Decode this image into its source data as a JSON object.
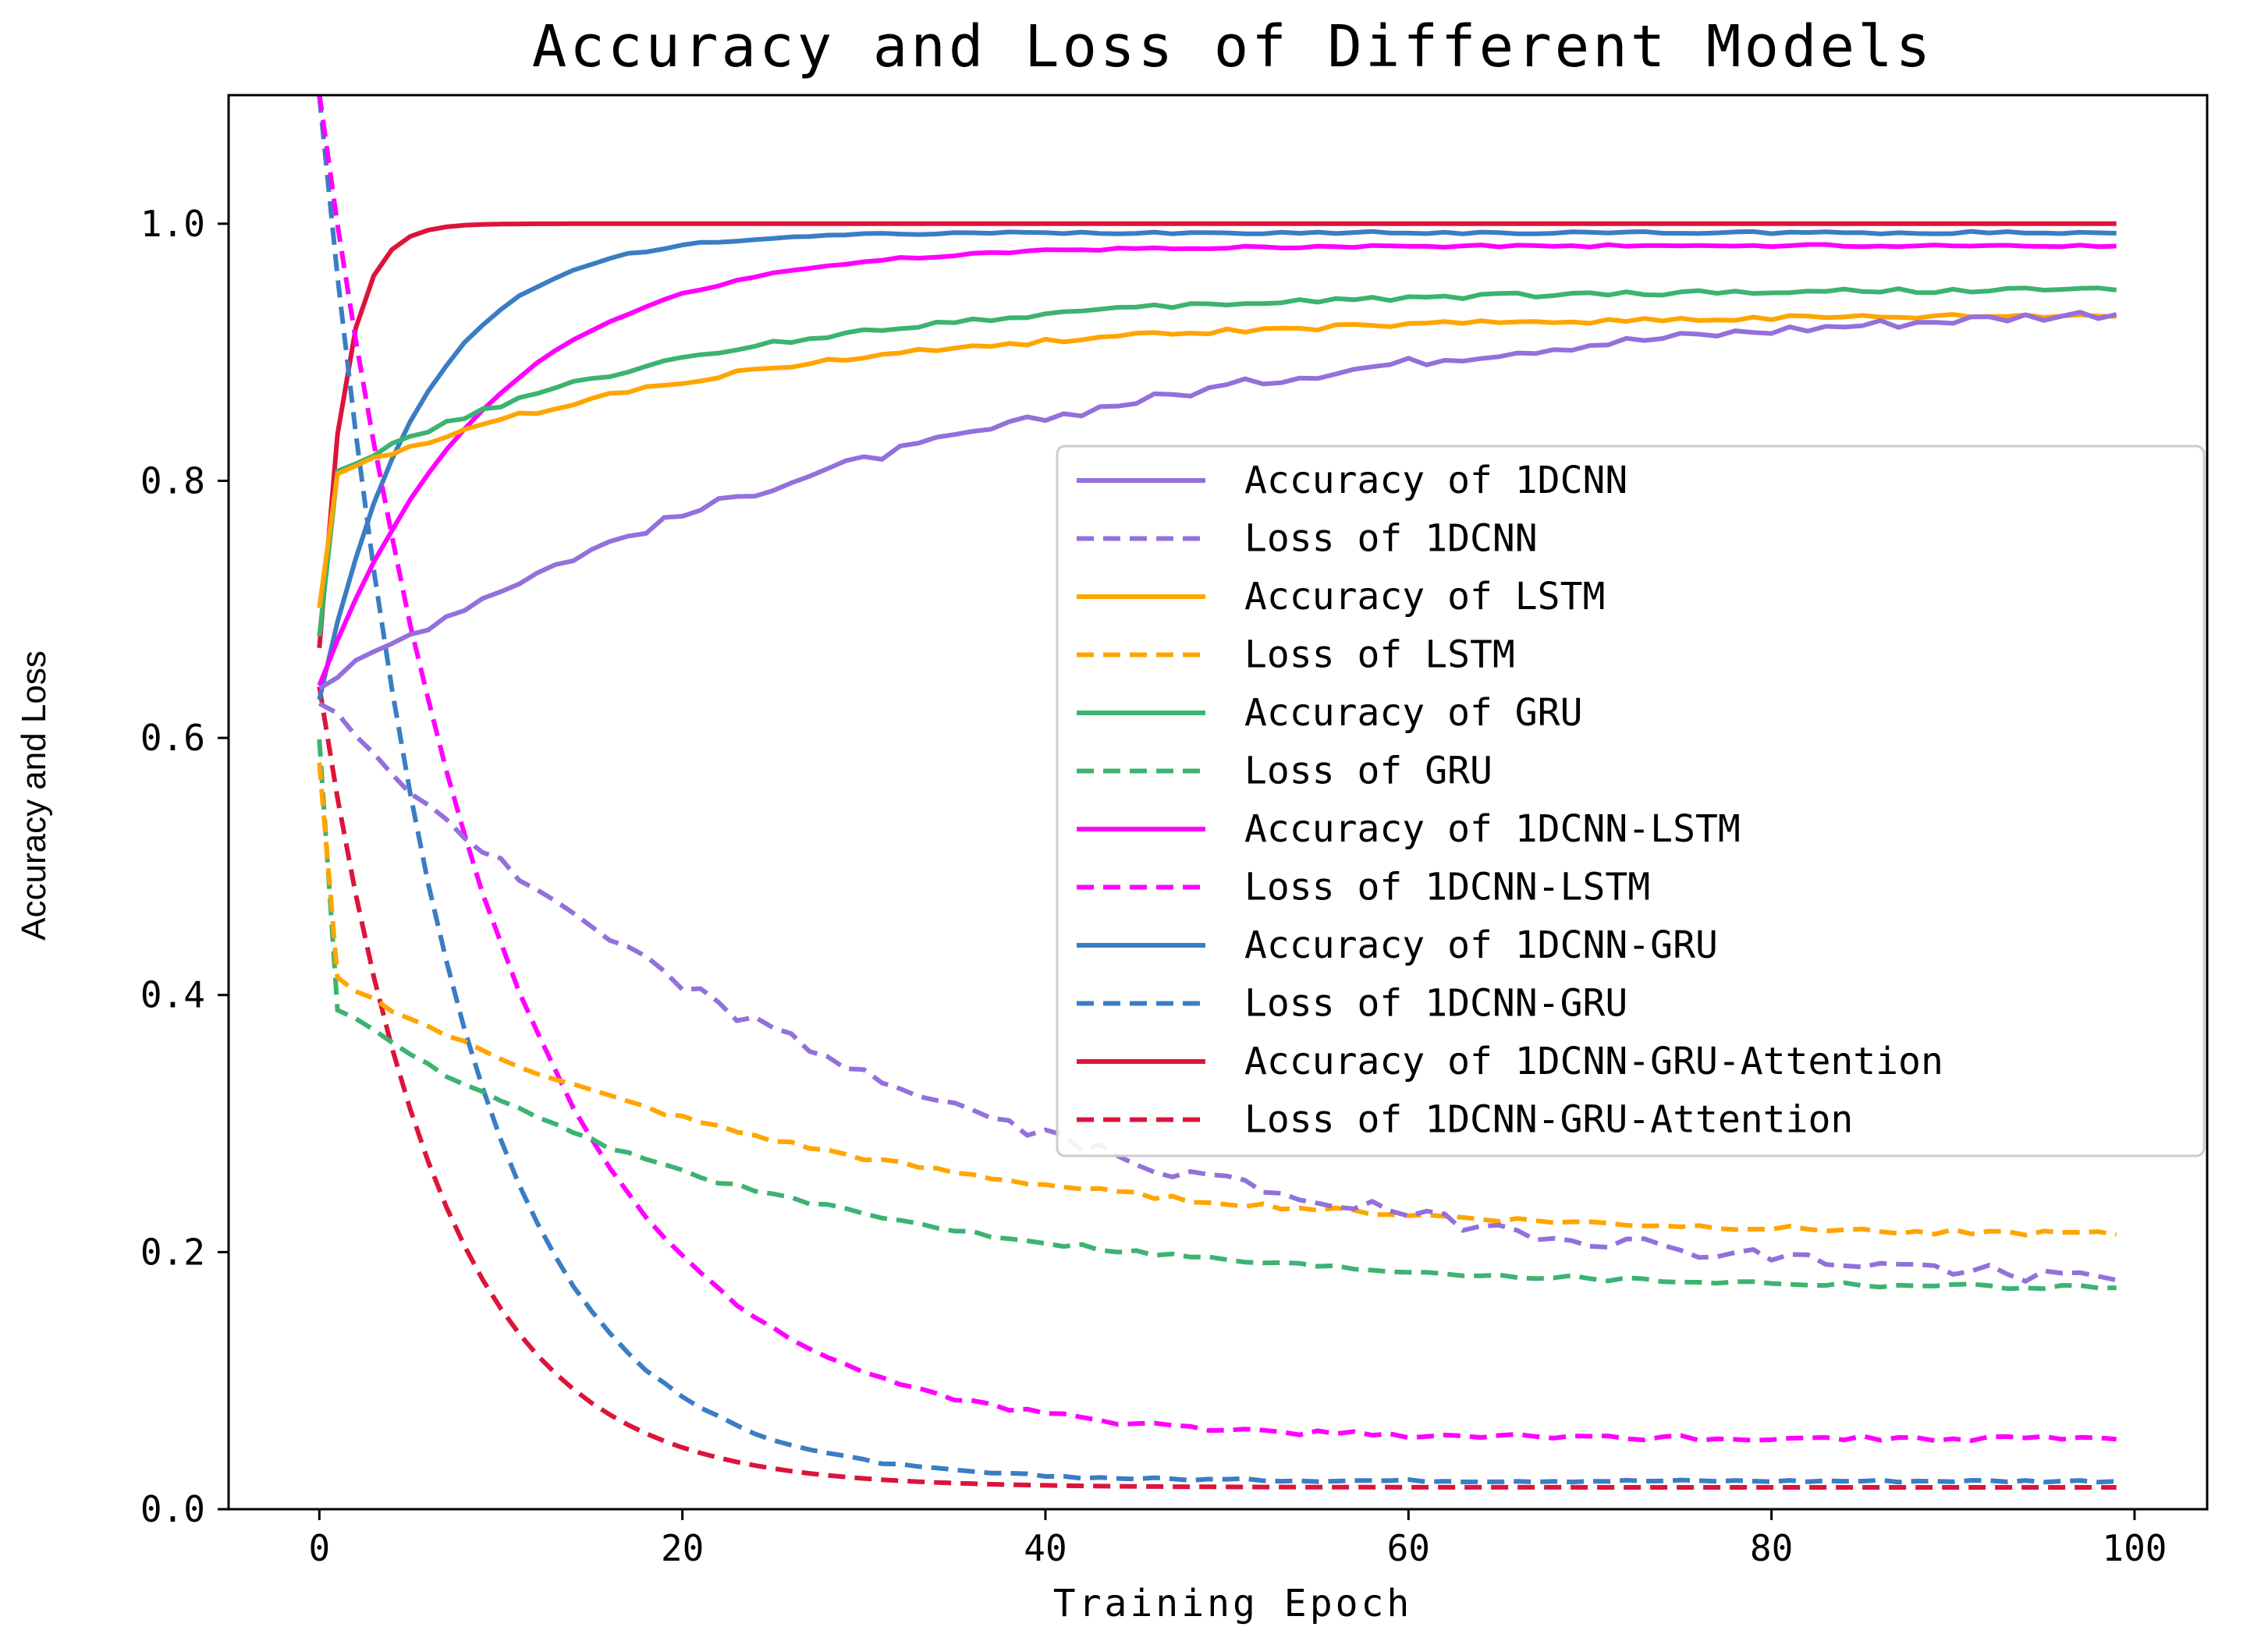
{
  "chart_data": {
    "type": "line",
    "title": "Accuracy and Loss of Different Models",
    "xlabel": "Training Epoch",
    "ylabel": "Accuracy and Loss",
    "xlim": [
      -5,
      104
    ],
    "ylim": [
      0.0,
      1.1
    ],
    "xticks": [
      0,
      20,
      40,
      60,
      80,
      100
    ],
    "yticks": [
      0.0,
      0.2,
      0.4,
      0.6,
      0.8,
      1.0
    ],
    "ytick_labels": [
      "0.0",
      "0.2",
      "0.4",
      "0.6",
      "0.8",
      "1.0"
    ],
    "grid": false,
    "legend_position": "center-right",
    "series": [
      {
        "name": "Accuracy of 1DCNN",
        "color": "#9370DB",
        "dash": "solid",
        "start": 0.64,
        "end": 0.95,
        "k": 0.028,
        "noise": 0.004
      },
      {
        "name": "Loss of 1DCNN",
        "color": "#9370DB",
        "dash": "dashed",
        "start": 0.63,
        "end": 0.16,
        "k": 0.032,
        "noise": 0.006
      },
      {
        "name": "Accuracy of LSTM",
        "color": "#FFA500",
        "dash": "solid",
        "start": 0.7,
        "end": 0.93,
        "k": 0.045,
        "initial_jump": 0.1,
        "noise": 0.002
      },
      {
        "name": "Loss of LSTM",
        "color": "#FFA500",
        "dash": "dashed",
        "start": 0.58,
        "end": 0.21,
        "k": 0.04,
        "initial_jump": 0.16,
        "noise": 0.002
      },
      {
        "name": "Accuracy of GRU",
        "color": "#3CB371",
        "dash": "solid",
        "start": 0.68,
        "end": 0.95,
        "k": 0.05,
        "initial_jump": 0.12,
        "noise": 0.002
      },
      {
        "name": "Loss of GRU",
        "color": "#3CB371",
        "dash": "dashed",
        "start": 0.6,
        "end": 0.17,
        "k": 0.045,
        "initial_jump": 0.2,
        "noise": 0.002
      },
      {
        "name": "Accuracy of 1DCNN-LSTM",
        "color": "#FF00FF",
        "dash": "solid",
        "start": 0.64,
        "end": 0.983,
        "k": 0.11,
        "noise": 0.001
      },
      {
        "name": "Loss of 1DCNN-LSTM",
        "color": "#FF00FF",
        "dash": "dashed",
        "start": 1.1,
        "end": 0.055,
        "k": 0.1,
        "noise": 0.002
      },
      {
        "name": "Accuracy of 1DCNN-GRU",
        "color": "#3A7DC4",
        "dash": "solid",
        "start": 0.63,
        "end": 0.993,
        "k": 0.18,
        "noise": 0.001
      },
      {
        "name": "Loss of 1DCNN-GRU",
        "color": "#3A7DC4",
        "dash": "dashed",
        "start": 1.1,
        "end": 0.022,
        "k": 0.14,
        "noise": 0.001
      },
      {
        "name": "Accuracy of 1DCNN-GRU-Attention",
        "color": "#DC143C",
        "dash": "solid",
        "start": 0.67,
        "end": 1.0,
        "k": 0.7,
        "noise": 0.0
      },
      {
        "name": "Loss of 1DCNN-GRU-Attention",
        "color": "#DC143C",
        "dash": "dashed",
        "start": 0.64,
        "end": 0.017,
        "k": 0.15,
        "noise": 0.0
      }
    ]
  }
}
